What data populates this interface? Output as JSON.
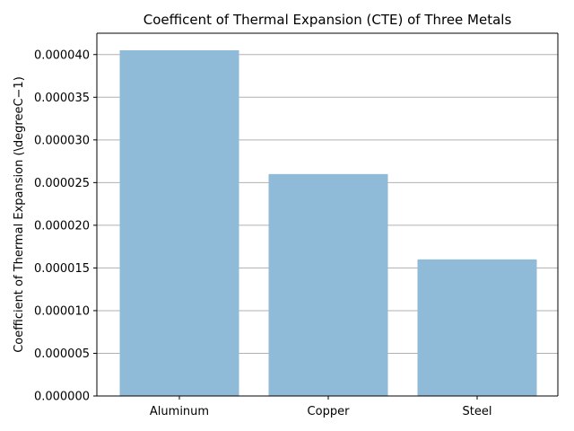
{
  "chart_data": {
    "type": "bar",
    "title": "Coefficent of Thermal Expansion (CTE) of Three Metals",
    "xlabel": "",
    "ylabel": "Coefficient of Thermal Expansion (\\degreeC−1)",
    "categories": [
      "Aluminum",
      "Copper",
      "Steel"
    ],
    "values": [
      4.05e-05,
      2.6e-05,
      1.6e-05
    ],
    "ylim": [
      0,
      4.25e-05
    ],
    "yticks": [
      0,
      5e-06,
      1e-05,
      1.5e-05,
      2e-05,
      2.5e-05,
      3e-05,
      3.5e-05,
      4e-05
    ],
    "ytick_labels": [
      "0.000000",
      "0.000005",
      "0.000010",
      "0.000015",
      "0.000020",
      "0.000025",
      "0.000030",
      "0.000035",
      "0.000040"
    ],
    "grid": "y",
    "bar_color": "#8fbbd9"
  }
}
